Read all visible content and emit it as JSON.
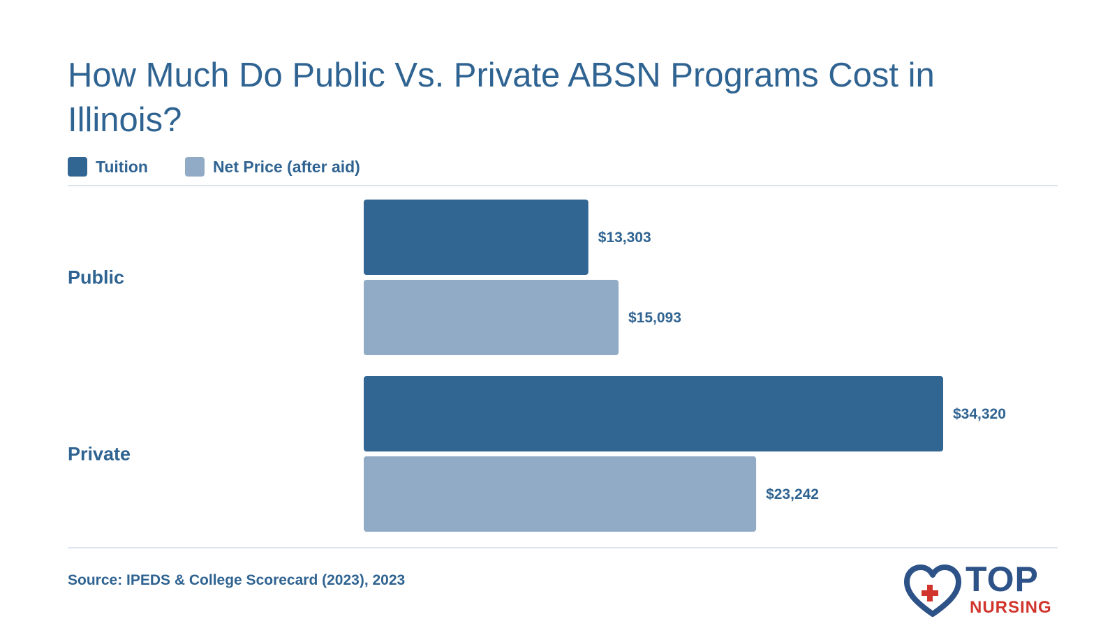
{
  "title": "How Much Do Public Vs. Private ABSN Programs Cost in Illinois?",
  "source": "Source: IPEDS & College Scorecard (2023), 2023",
  "logo": {
    "line1": "TOP",
    "line2": "NURSING",
    "icon": "heart-cross-icon"
  },
  "colors": {
    "tuition": "#316592",
    "net_price": "#91abc6",
    "text": "#2f6391",
    "rule": "#dce5ee",
    "logo_blue": "#2c5287",
    "logo_red": "#d0342c"
  },
  "chart_data": {
    "type": "bar",
    "orientation": "horizontal",
    "title": "How Much Do Public Vs. Private ABSN Programs Cost in Illinois?",
    "categories": [
      "Public",
      "Private"
    ],
    "series": [
      {
        "name": "Tuition",
        "values": [
          13303,
          34320
        ],
        "labels": [
          "$13,303",
          "$34,320"
        ],
        "color": "#316592"
      },
      {
        "name": "Net Price (after aid)",
        "values": [
          15093,
          23242
        ],
        "labels": [
          "$15,093",
          "$23,242"
        ],
        "color": "#91abc6"
      }
    ],
    "xlim": [
      0,
      34320
    ],
    "grid": false,
    "legend": "top-left"
  }
}
